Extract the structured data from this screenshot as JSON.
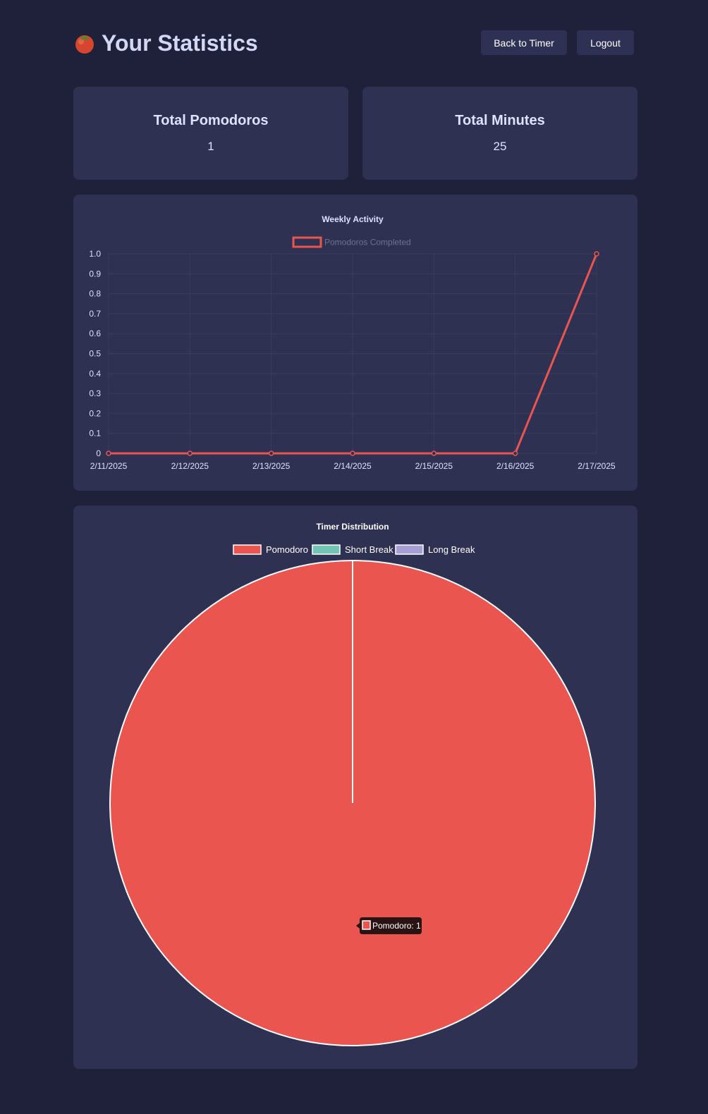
{
  "header": {
    "title": "Your Statistics",
    "title_icon": "tomato-icon",
    "back_button": "Back to Timer",
    "logout_button": "Logout"
  },
  "stats": {
    "total_pomodoros_label": "Total Pomodoros",
    "total_pomodoros_value": "1",
    "total_minutes_label": "Total Minutes",
    "total_minutes_value": "25"
  },
  "colors": {
    "background": "#1f2039",
    "card": "#2e3152",
    "pomodoro": "#eb554f",
    "short_break": "#73c4b4",
    "long_break": "#a79ed4",
    "text": "#dde2ff"
  },
  "chart_data": [
    {
      "type": "line",
      "title": "Weekly Activity",
      "x": [
        "2/11/2025",
        "2/12/2025",
        "2/13/2025",
        "2/14/2025",
        "2/15/2025",
        "2/16/2025",
        "2/17/2025"
      ],
      "series": [
        {
          "name": "Pomodoros Completed",
          "values": [
            0,
            0,
            0,
            0,
            0,
            0,
            1
          ],
          "color": "#eb554f"
        }
      ],
      "ylim": [
        0,
        1
      ],
      "yticks": [
        "0",
        "0.1",
        "0.2",
        "0.3",
        "0.4",
        "0.5",
        "0.6",
        "0.7",
        "0.8",
        "0.9",
        "1.0"
      ],
      "legend": "top",
      "grid": true
    },
    {
      "type": "pie",
      "title": "Timer Distribution",
      "categories": [
        "Pomodoro",
        "Short Break",
        "Long Break"
      ],
      "values": [
        1,
        0,
        0
      ],
      "colors": [
        "#eb554f",
        "#73c4b4",
        "#a79ed4"
      ],
      "legend": "top",
      "tooltip": "Pomodoro: 1"
    }
  ]
}
